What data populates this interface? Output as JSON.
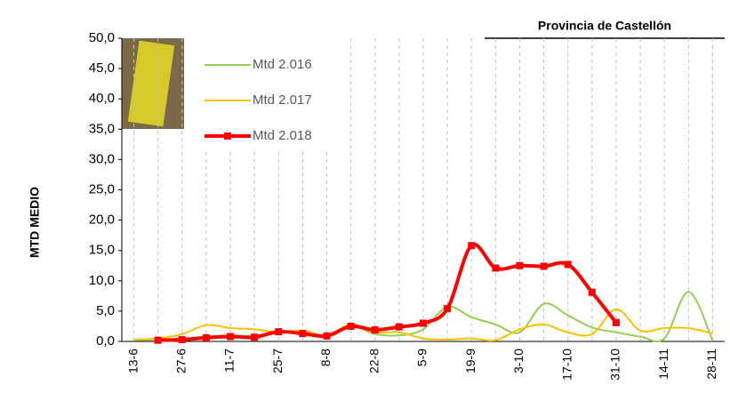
{
  "chart_data": {
    "type": "line",
    "title": "Provincia de Castellón",
    "y_label": "MTD MEDIO",
    "categories": [
      "13-6",
      null,
      "27-6",
      null,
      "11-7",
      null,
      "25-7",
      null,
      "8-8",
      null,
      "22-8",
      null,
      "5-9",
      null,
      "19-9",
      null,
      "3-10",
      null,
      "17-10",
      null,
      "31-10",
      null,
      "14-11",
      null,
      "28-11"
    ],
    "series": [
      {
        "name": "Mtd 2.016",
        "color": "#92d050",
        "values": [
          0.2,
          0.3,
          0.5,
          0.8,
          1.0,
          0.9,
          1.4,
          1.5,
          0.8,
          2.6,
          1.2,
          1.0,
          2.0,
          5.7,
          4.0,
          2.8,
          1.5,
          6.2,
          4.3,
          2.3,
          1.5,
          0.8,
          0.5,
          8.2,
          0.2
        ]
      },
      {
        "name": "Mtd 2.017",
        "color": "#ffc000",
        "values": [
          0.3,
          0.5,
          1.2,
          2.7,
          2.2,
          2.0,
          1.5,
          1.8,
          1.0,
          2.8,
          1.5,
          1.5,
          0.5,
          0.3,
          0.5,
          0.2,
          2.0,
          2.8,
          1.5,
          1.2,
          5.3,
          1.8,
          2.2,
          2.2,
          1.3
        ]
      },
      {
        "name": "Mtd 2.018",
        "color": "#ff0000",
        "values": [
          null,
          0.2,
          0.3,
          0.6,
          0.8,
          0.7,
          1.6,
          1.3,
          0.9,
          2.5,
          1.9,
          2.4,
          3.0,
          5.4,
          15.8,
          12.1,
          12.5,
          12.4,
          12.7,
          8.1,
          3.1,
          null,
          null,
          null,
          null
        ]
      }
    ],
    "ylim": [
      0,
      50
    ],
    "yticks": [
      {
        "value": 0,
        "label": "0,0"
      },
      {
        "value": 5,
        "label": "5,0"
      },
      {
        "value": 10,
        "label": "10,0"
      },
      {
        "value": 15,
        "label": "15,0"
      },
      {
        "value": 20,
        "label": "20,0"
      },
      {
        "value": 25,
        "label": "25,0"
      },
      {
        "value": 30,
        "label": "30,0"
      },
      {
        "value": 35,
        "label": "35,0"
      },
      {
        "value": 40,
        "label": "40,0"
      },
      {
        "value": 45,
        "label": "45,0"
      },
      {
        "value": 50,
        "label": "50,0"
      }
    ],
    "grid": true
  }
}
